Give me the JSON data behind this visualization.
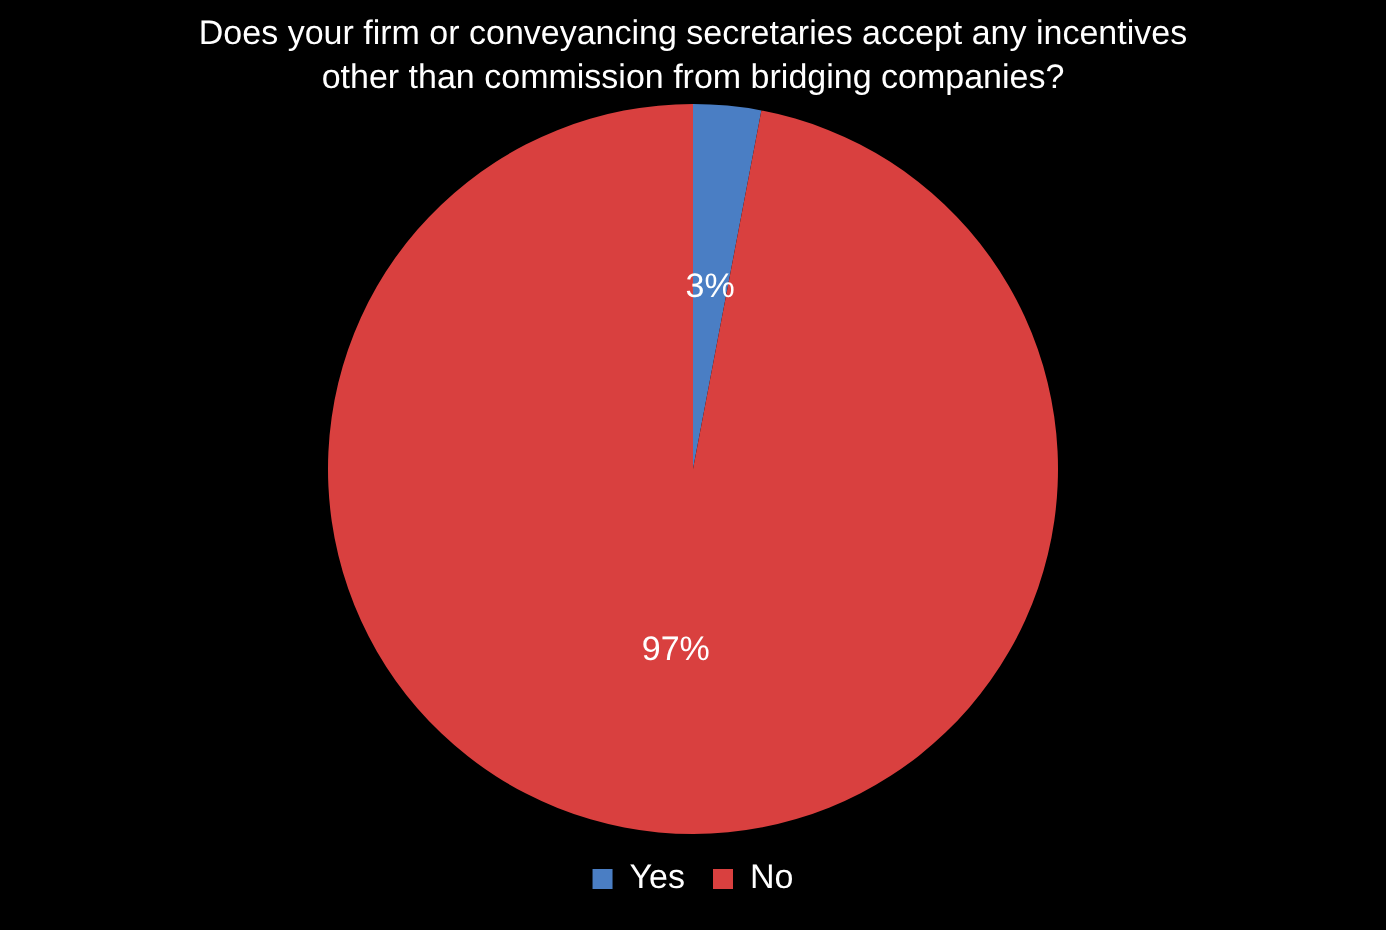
{
  "chart_data": {
    "type": "pie",
    "title": "Does your firm or conveyancing secretaries accept any incentives  other than commission from bridging companies?",
    "categories": [
      "Yes",
      "No"
    ],
    "values": [
      3,
      97
    ],
    "colors": [
      "#4a7ec4",
      "#d9403f"
    ],
    "value_labels": [
      "3%",
      "97%"
    ],
    "legend": "bottom"
  }
}
